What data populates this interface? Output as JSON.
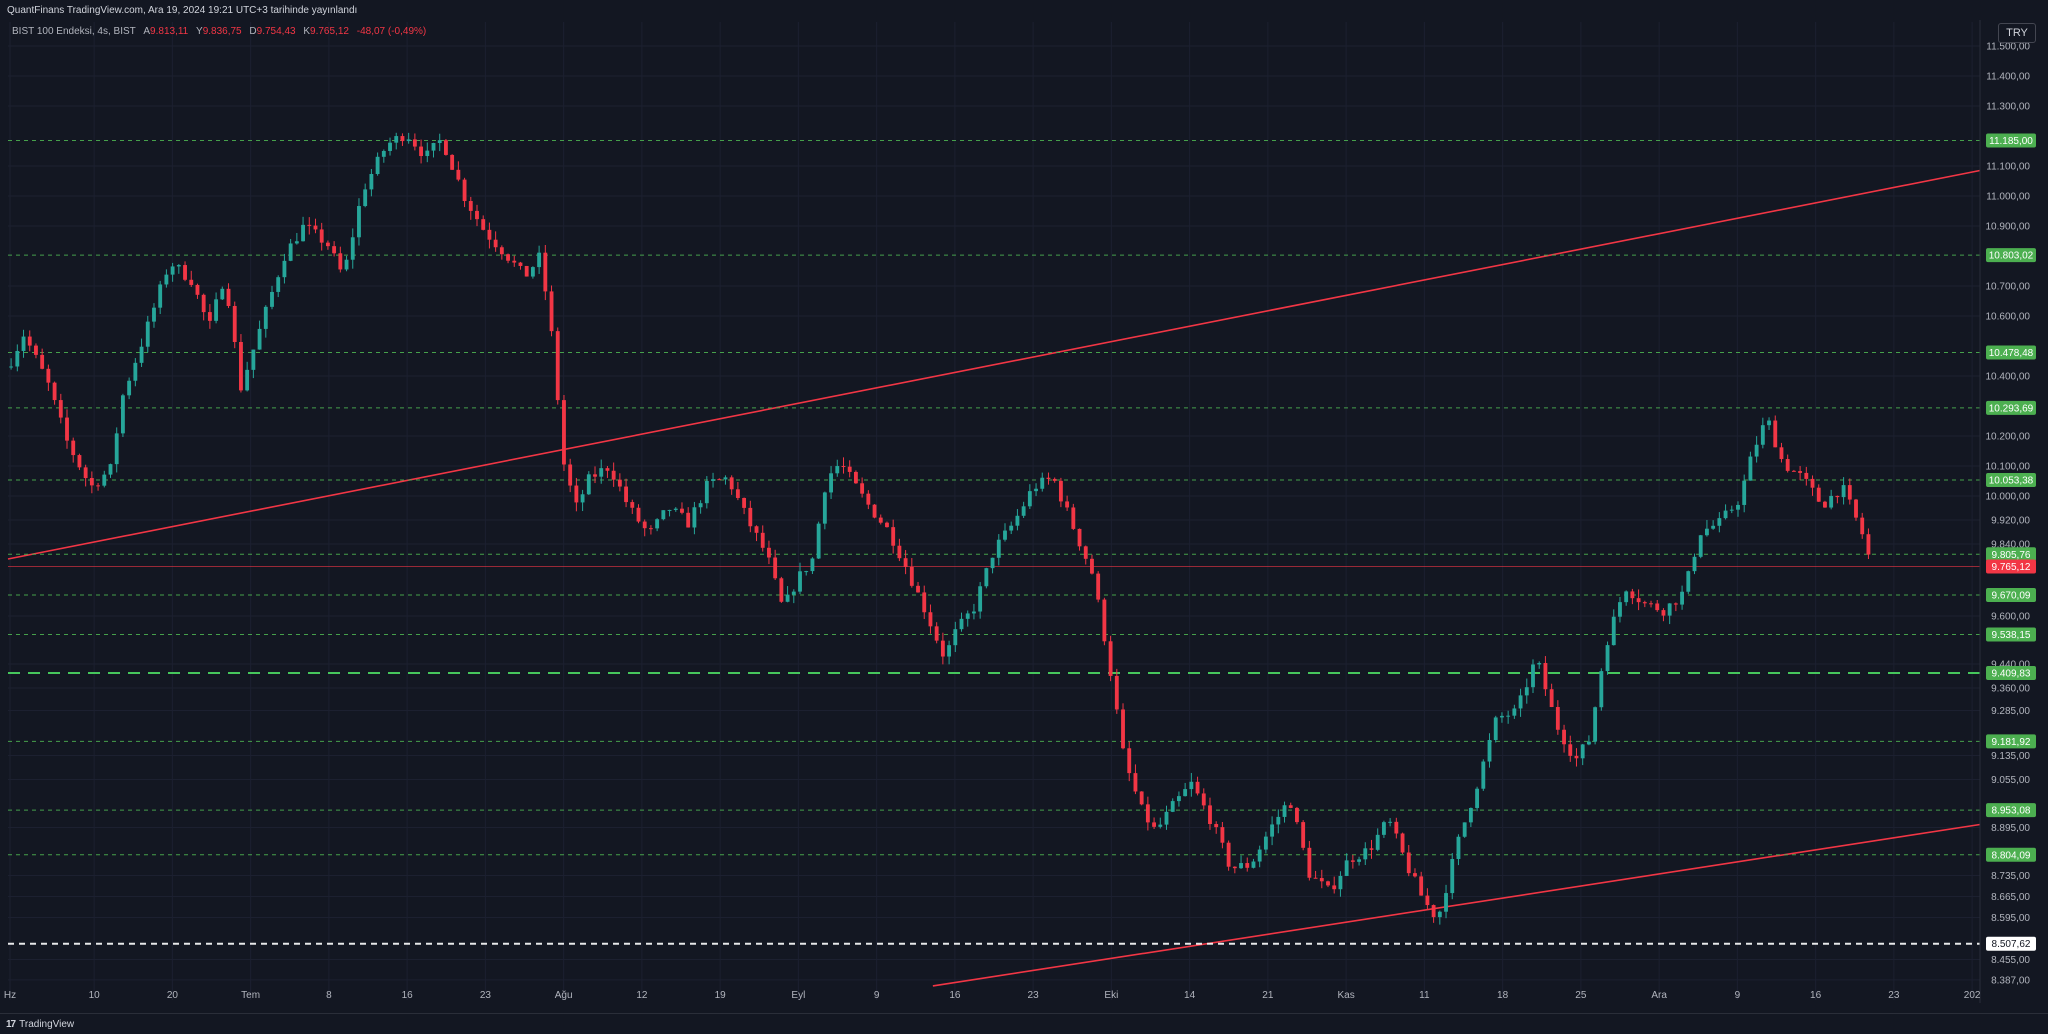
{
  "header": {
    "publish_text": "QuantFinans TradingView.com, Ara 19, 2024 19:21 UTC+3 tarihinde yayınlandı",
    "symbol": "BIST 100 Endeksi, 4s, BIST",
    "open_label": "A",
    "open_value": "9.813,11",
    "high_label": "Y",
    "high_value": "9.836,75",
    "low_label": "D",
    "low_value": "9.754,43",
    "close_label": "K",
    "close_value": "9.765,12",
    "change": "-48,07 (-0,49%)",
    "currency": "TRY"
  },
  "footer": {
    "brand": "TradingView",
    "logo": "tradingview-logo-icon"
  },
  "chart_data": {
    "type": "candlestick",
    "y_range": [
      8320,
      11580
    ],
    "y_ticks": [
      {
        "v": 11500,
        "label": "11.500,00"
      },
      {
        "v": 11400,
        "label": "11.400,00"
      },
      {
        "v": 11300,
        "label": "11.300,00"
      },
      {
        "v": 11100,
        "label": "11.100,00"
      },
      {
        "v": 11000,
        "label": "11.000,00"
      },
      {
        "v": 10900,
        "label": "10.900,00"
      },
      {
        "v": 10700,
        "label": "10.700,00"
      },
      {
        "v": 10600,
        "label": "10.600,00"
      },
      {
        "v": 10400,
        "label": "10.400,00"
      },
      {
        "v": 10200,
        "label": "10.200,00"
      },
      {
        "v": 10100,
        "label": "10.100,00"
      },
      {
        "v": 10000,
        "label": "10.000,00"
      },
      {
        "v": 9920,
        "label": "9.920,00"
      },
      {
        "v": 9840,
        "label": "9.840,00"
      },
      {
        "v": 9600,
        "label": "9.600,00"
      },
      {
        "v": 9440,
        "label": "9.440,00"
      },
      {
        "v": 9360,
        "label": "9.360,00"
      },
      {
        "v": 9285,
        "label": "9.285,00"
      },
      {
        "v": 9135,
        "label": "9.135,00"
      },
      {
        "v": 9055,
        "label": "9.055,00"
      },
      {
        "v": 8895,
        "label": "8.895,00"
      },
      {
        "v": 8735,
        "label": "8.735,00"
      },
      {
        "v": 8665,
        "label": "8.665,00"
      },
      {
        "v": 8595,
        "label": "8.595,00"
      },
      {
        "v": 8455,
        "label": "8.455,00"
      },
      {
        "v": 8387,
        "label": "8.387,00"
      }
    ],
    "x_ticks": [
      "Hz",
      "10",
      "20",
      "Tem",
      "8",
      "16",
      "23",
      "Ağu",
      "12",
      "19",
      "Eyl",
      "9",
      "16",
      "23",
      "Eki",
      "14",
      "21",
      "Kas",
      "11",
      "18",
      "25",
      "Ara",
      "9",
      "16",
      "23",
      "202"
    ],
    "levels": [
      {
        "v": 11185.0,
        "label": "11.185,00"
      },
      {
        "v": 10803.02,
        "label": "10.803,02"
      },
      {
        "v": 10478.48,
        "label": "10.478,48"
      },
      {
        "v": 10293.69,
        "label": "10.293,69"
      },
      {
        "v": 10053.38,
        "label": "10.053,38"
      },
      {
        "v": 9805.76,
        "label": "9.805,76"
      },
      {
        "v": 9670.09,
        "label": "9.670,09"
      },
      {
        "v": 9538.15,
        "label": "9.538,15"
      },
      {
        "v": 9409.83,
        "label": "9.409,83",
        "style": "major"
      },
      {
        "v": 9181.92,
        "label": "9.181,92"
      },
      {
        "v": 8953.08,
        "label": "8.953,08"
      },
      {
        "v": 8804.09,
        "label": "8.804,09"
      },
      {
        "v": 8507.62,
        "label": "8.507,62",
        "style": "white"
      }
    ],
    "last_price": {
      "v": 9765.12,
      "label": "9.765,12"
    },
    "trendlines": [
      {
        "from": [
          0,
          9790
        ],
        "to": [
          1.0,
          11085
        ]
      },
      {
        "from": [
          0.469,
          8367
        ],
        "to": [
          1.0,
          8905
        ]
      }
    ],
    "anchors": [
      [
        0.0,
        10430
      ],
      [
        0.008,
        10540
      ],
      [
        0.02,
        10380
      ],
      [
        0.03,
        10180
      ],
      [
        0.042,
        10030
      ],
      [
        0.052,
        10090
      ],
      [
        0.058,
        10330
      ],
      [
        0.07,
        10550
      ],
      [
        0.082,
        10780
      ],
      [
        0.093,
        10720
      ],
      [
        0.102,
        10560
      ],
      [
        0.11,
        10740
      ],
      [
        0.118,
        10360
      ],
      [
        0.128,
        10560
      ],
      [
        0.14,
        10800
      ],
      [
        0.15,
        10900
      ],
      [
        0.162,
        10840
      ],
      [
        0.17,
        10730
      ],
      [
        0.18,
        11020
      ],
      [
        0.192,
        11170
      ],
      [
        0.202,
        11210
      ],
      [
        0.212,
        11130
      ],
      [
        0.22,
        11190
      ],
      [
        0.232,
        10990
      ],
      [
        0.242,
        10880
      ],
      [
        0.252,
        10810
      ],
      [
        0.262,
        10730
      ],
      [
        0.27,
        10800
      ],
      [
        0.276,
        10520
      ],
      [
        0.282,
        10100
      ],
      [
        0.288,
        9960
      ],
      [
        0.295,
        10060
      ],
      [
        0.305,
        10100
      ],
      [
        0.315,
        9960
      ],
      [
        0.325,
        9870
      ],
      [
        0.335,
        9960
      ],
      [
        0.345,
        9910
      ],
      [
        0.355,
        10040
      ],
      [
        0.365,
        10060
      ],
      [
        0.375,
        9920
      ],
      [
        0.385,
        9800
      ],
      [
        0.393,
        9620
      ],
      [
        0.4,
        9720
      ],
      [
        0.408,
        9790
      ],
      [
        0.415,
        10060
      ],
      [
        0.422,
        10110
      ],
      [
        0.435,
        9980
      ],
      [
        0.447,
        9880
      ],
      [
        0.455,
        9770
      ],
      [
        0.465,
        9620
      ],
      [
        0.475,
        9460
      ],
      [
        0.48,
        9540
      ],
      [
        0.49,
        9630
      ],
      [
        0.5,
        9820
      ],
      [
        0.51,
        9910
      ],
      [
        0.52,
        10030
      ],
      [
        0.53,
        10060
      ],
      [
        0.54,
        9900
      ],
      [
        0.55,
        9740
      ],
      [
        0.558,
        9460
      ],
      [
        0.566,
        9120
      ],
      [
        0.575,
        8950
      ],
      [
        0.582,
        8880
      ],
      [
        0.59,
        8960
      ],
      [
        0.6,
        9040
      ],
      [
        0.61,
        8920
      ],
      [
        0.62,
        8760
      ],
      [
        0.63,
        8770
      ],
      [
        0.64,
        8890
      ],
      [
        0.65,
        8990
      ],
      [
        0.66,
        8740
      ],
      [
        0.67,
        8680
      ],
      [
        0.68,
        8790
      ],
      [
        0.69,
        8820
      ],
      [
        0.7,
        8920
      ],
      [
        0.71,
        8760
      ],
      [
        0.718,
        8650
      ],
      [
        0.725,
        8590
      ],
      [
        0.735,
        8840
      ],
      [
        0.745,
        9040
      ],
      [
        0.755,
        9260
      ],
      [
        0.765,
        9280
      ],
      [
        0.775,
        9460
      ],
      [
        0.785,
        9240
      ],
      [
        0.795,
        9120
      ],
      [
        0.802,
        9190
      ],
      [
        0.81,
        9500
      ],
      [
        0.82,
        9700
      ],
      [
        0.83,
        9640
      ],
      [
        0.84,
        9620
      ],
      [
        0.85,
        9680
      ],
      [
        0.858,
        9880
      ],
      [
        0.868,
        9910
      ],
      [
        0.878,
        9990
      ],
      [
        0.885,
        10150
      ],
      [
        0.892,
        10260
      ],
      [
        0.9,
        10110
      ],
      [
        0.91,
        10060
      ],
      [
        0.92,
        9970
      ],
      [
        0.93,
        10030
      ],
      [
        0.94,
        9880
      ],
      [
        0.945,
        9765
      ]
    ]
  }
}
